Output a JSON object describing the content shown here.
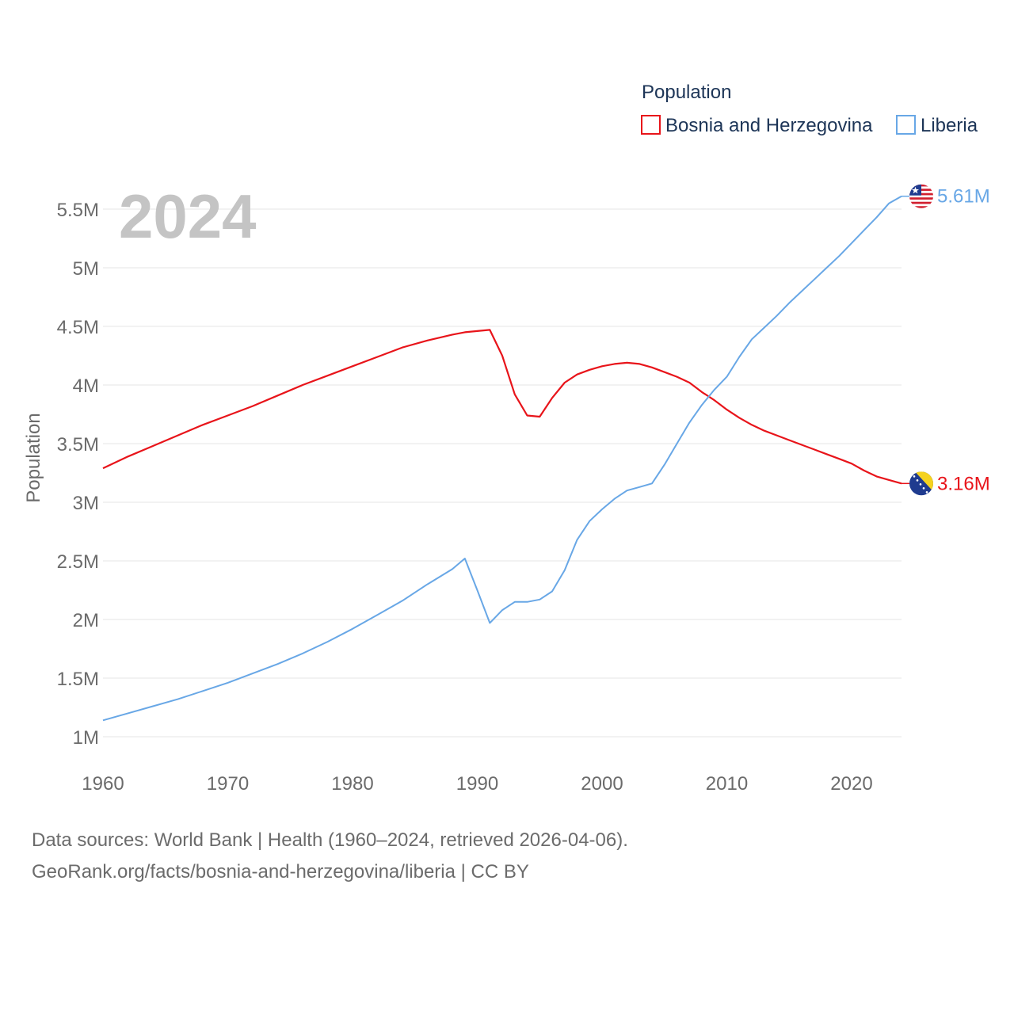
{
  "legend": {
    "title": "Population",
    "entries": [
      "Bosnia and Herzegovina",
      "Liberia"
    ]
  },
  "current_year": "2024",
  "end_labels": {
    "bosnia": "3.16M",
    "liberia": "5.61M"
  },
  "flags": {
    "bosnia": "bosnia-flag-icon",
    "liberia": "liberia-flag-icon"
  },
  "colors": {
    "bosnia": "#e8141a",
    "liberia": "#68a7e6",
    "grid": "#e6e6e6",
    "text": "#6b6b6b"
  },
  "footer": {
    "line1": "Data sources: World Bank | Health (1960–2024, retrieved 2026-04-06).",
    "line2": "GeoRank.org/facts/bosnia-and-herzegovina/liberia | CC BY"
  },
  "chart_data": {
    "type": "line",
    "title": "Population",
    "xlabel": "",
    "ylabel": "Population",
    "xlim": [
      1960,
      2024
    ],
    "ylim": [
      0.9,
      5.75
    ],
    "grid": true,
    "legend_position": "top-right",
    "x_ticks": [
      1960,
      1970,
      1980,
      1990,
      2000,
      2010,
      2020
    ],
    "x_tick_labels": [
      "1960",
      "1970",
      "1980",
      "1990",
      "2000",
      "2010",
      "2020"
    ],
    "y_ticks": [
      1,
      1.5,
      2,
      2.5,
      3,
      3.5,
      4,
      4.5,
      5,
      5.5
    ],
    "y_tick_labels": [
      "1M",
      "1.5M",
      "2M",
      "2.5M",
      "3M",
      "3.5M",
      "4M",
      "4.5M",
      "5M",
      "5.5M"
    ],
    "y_unit": "millions",
    "series": [
      {
        "name": "Bosnia and Herzegovina",
        "color": "#e8141a",
        "points": [
          [
            1960,
            3.29
          ],
          [
            1962,
            3.39
          ],
          [
            1964,
            3.48
          ],
          [
            1966,
            3.57
          ],
          [
            1968,
            3.66
          ],
          [
            1970,
            3.74
          ],
          [
            1972,
            3.82
          ],
          [
            1974,
            3.91
          ],
          [
            1976,
            4.0
          ],
          [
            1978,
            4.08
          ],
          [
            1980,
            4.16
          ],
          [
            1982,
            4.24
          ],
          [
            1984,
            4.32
          ],
          [
            1986,
            4.38
          ],
          [
            1988,
            4.43
          ],
          [
            1989,
            4.45
          ],
          [
            1990,
            4.46
          ],
          [
            1991,
            4.47
          ],
          [
            1992,
            4.25
          ],
          [
            1993,
            3.92
          ],
          [
            1994,
            3.74
          ],
          [
            1995,
            3.73
          ],
          [
            1996,
            3.89
          ],
          [
            1997,
            4.02
          ],
          [
            1998,
            4.09
          ],
          [
            1999,
            4.13
          ],
          [
            2000,
            4.16
          ],
          [
            2001,
            4.18
          ],
          [
            2002,
            4.19
          ],
          [
            2003,
            4.18
          ],
          [
            2004,
            4.15
          ],
          [
            2005,
            4.11
          ],
          [
            2006,
            4.07
          ],
          [
            2007,
            4.02
          ],
          [
            2008,
            3.94
          ],
          [
            2009,
            3.87
          ],
          [
            2010,
            3.79
          ],
          [
            2011,
            3.72
          ],
          [
            2012,
            3.66
          ],
          [
            2013,
            3.61
          ],
          [
            2014,
            3.57
          ],
          [
            2015,
            3.53
          ],
          [
            2016,
            3.49
          ],
          [
            2017,
            3.45
          ],
          [
            2018,
            3.41
          ],
          [
            2019,
            3.37
          ],
          [
            2020,
            3.33
          ],
          [
            2021,
            3.27
          ],
          [
            2022,
            3.22
          ],
          [
            2023,
            3.19
          ],
          [
            2024,
            3.16
          ]
        ]
      },
      {
        "name": "Liberia",
        "color": "#68a7e6",
        "points": [
          [
            1960,
            1.14
          ],
          [
            1962,
            1.2
          ],
          [
            1964,
            1.26
          ],
          [
            1966,
            1.32
          ],
          [
            1968,
            1.39
          ],
          [
            1970,
            1.46
          ],
          [
            1972,
            1.54
          ],
          [
            1974,
            1.62
          ],
          [
            1976,
            1.71
          ],
          [
            1978,
            1.81
          ],
          [
            1980,
            1.92
          ],
          [
            1982,
            2.04
          ],
          [
            1984,
            2.16
          ],
          [
            1986,
            2.3
          ],
          [
            1988,
            2.43
          ],
          [
            1989,
            2.52
          ],
          [
            1990,
            2.25
          ],
          [
            1991,
            1.97
          ],
          [
            1992,
            2.08
          ],
          [
            1993,
            2.15
          ],
          [
            1994,
            2.15
          ],
          [
            1995,
            2.17
          ],
          [
            1996,
            2.24
          ],
          [
            1997,
            2.42
          ],
          [
            1998,
            2.68
          ],
          [
            1999,
            2.84
          ],
          [
            2000,
            2.94
          ],
          [
            2001,
            3.03
          ],
          [
            2002,
            3.1
          ],
          [
            2003,
            3.13
          ],
          [
            2004,
            3.16
          ],
          [
            2005,
            3.32
          ],
          [
            2006,
            3.5
          ],
          [
            2007,
            3.68
          ],
          [
            2008,
            3.83
          ],
          [
            2009,
            3.96
          ],
          [
            2010,
            4.07
          ],
          [
            2011,
            4.24
          ],
          [
            2012,
            4.39
          ],
          [
            2013,
            4.49
          ],
          [
            2014,
            4.59
          ],
          [
            2015,
            4.7
          ],
          [
            2016,
            4.8
          ],
          [
            2017,
            4.9
          ],
          [
            2018,
            5.0
          ],
          [
            2019,
            5.1
          ],
          [
            2020,
            5.21
          ],
          [
            2021,
            5.32
          ],
          [
            2022,
            5.43
          ],
          [
            2023,
            5.55
          ],
          [
            2024,
            5.61
          ]
        ]
      }
    ]
  }
}
